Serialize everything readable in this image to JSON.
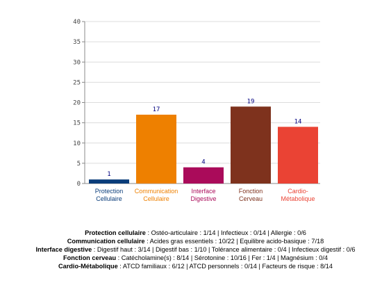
{
  "chart_data": {
    "type": "bar",
    "categories": [
      {
        "line1": "Protection",
        "line2": "Cellulaire"
      },
      {
        "line1": "Communication",
        "line2": "Cellulaire"
      },
      {
        "line1": "Interface",
        "line2": "Digestive"
      },
      {
        "line1": "Fonction",
        "line2": "Cerveau"
      },
      {
        "line1": "Cardio-",
        "line2": "Métabolique"
      }
    ],
    "values": [
      1,
      17,
      4,
      19,
      14
    ],
    "value_labels": [
      "1",
      "17",
      "4",
      "19",
      "14"
    ],
    "colors": [
      "#0a3d7a",
      "#ee8000",
      "#aa0b5a",
      "#7e321d",
      "#ea4334"
    ],
    "ylim": [
      0,
      40
    ],
    "yticks": [
      0,
      5,
      10,
      15,
      20,
      25,
      30,
      35,
      40
    ],
    "grid": true,
    "title": "",
    "xlabel": "",
    "ylabel": ""
  },
  "summary": [
    {
      "label": "Protection cellulaire",
      "text": " : Ostéo-articulaire : 1/14 | Infectieux : 0/14 | Allergie : 0/6"
    },
    {
      "label": "Communication cellulaire",
      "text": " : Acides gras essentiels : 10/22 | Equilibre acido-basique : 7/18"
    },
    {
      "label": "Interface digestive",
      "text": " : Digestif haut : 3/14 | Digestif bas : 1/10 | Tolérance alimentaire : 0/4 | Infectieux digestif : 0/6"
    },
    {
      "label": "Fonction cerveau",
      "text": " : Catécholamine(s) : 8/14 | Sérotonine : 10/16 | Fer : 1/4 | Magnésium : 0/4"
    },
    {
      "label": "Cardio-Métabolique",
      "text": " : ATCD familiaux : 6/12 | ATCD personnels : 0/14 | Facteurs de risque : 8/14"
    }
  ]
}
